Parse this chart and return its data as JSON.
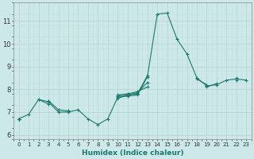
{
  "xlabel": "Humidex (Indice chaleur)",
  "background_color": "#cce8e8",
  "grid_color_major": "#c0d8d8",
  "grid_color_minor": "#d8ecec",
  "line_color": "#1a7a6e",
  "xlim": [
    -0.5,
    23.5
  ],
  "ylim": [
    5.8,
    11.8
  ],
  "xticks": [
    0,
    1,
    2,
    3,
    4,
    5,
    6,
    7,
    8,
    9,
    10,
    11,
    12,
    13,
    14,
    15,
    16,
    17,
    18,
    19,
    20,
    21,
    22,
    23
  ],
  "yticks": [
    6,
    7,
    8,
    9,
    10,
    11
  ],
  "series": [
    [
      6.7,
      6.9,
      7.55,
      7.45,
      7.0,
      7.0,
      7.1,
      6.7,
      6.45,
      6.7,
      7.65,
      7.7,
      7.75,
      8.55,
      11.3,
      11.35,
      10.2,
      9.55,
      8.5,
      8.15,
      8.2,
      8.4,
      8.45,
      8.4
    ],
    [
      6.7,
      null,
      7.55,
      7.35,
      null,
      null,
      null,
      null,
      null,
      null,
      7.6,
      7.75,
      7.8,
      8.6,
      null,
      null,
      null,
      null,
      8.45,
      8.2,
      null,
      null,
      8.4,
      null
    ],
    [
      6.7,
      null,
      null,
      7.5,
      7.1,
      7.05,
      null,
      null,
      null,
      null,
      7.7,
      7.75,
      7.85,
      8.3,
      null,
      null,
      null,
      null,
      null,
      8.1,
      8.25,
      null,
      8.45,
      null
    ],
    [
      6.7,
      null,
      null,
      null,
      null,
      null,
      null,
      null,
      null,
      null,
      7.75,
      7.8,
      7.9,
      8.1,
      null,
      null,
      null,
      null,
      null,
      null,
      null,
      null,
      8.5,
      null
    ]
  ]
}
